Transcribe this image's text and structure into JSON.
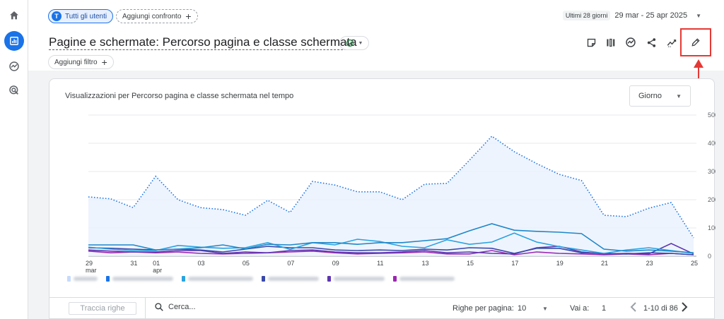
{
  "header": {
    "segment_chip": {
      "avatar_letter": "T",
      "label": "Tutti gli utenti"
    },
    "compare_chip": {
      "label": "Aggiungi confronto",
      "plus": "+"
    },
    "date_range": {
      "badge": "Ultimi 28 giorni",
      "range": "29 mar - 25 apr 2025",
      "caret": "▼"
    }
  },
  "report": {
    "title": "Pagine e schermate: Percorso pagina e classe schermata",
    "filter_chip": {
      "label": "Aggiungi filtro",
      "plus": "+"
    }
  },
  "colors": {
    "accent": "#1a73e8",
    "highlight": "#e53935",
    "status_ok": "#188038",
    "series_main": "#1a73e8",
    "series_fill": "#e8f0fe"
  },
  "toolbar_icons": [
    "note-icon",
    "compare-columns-icon",
    "insights-icon",
    "share-icon",
    "trend-icon",
    "pencil-icon"
  ],
  "chart": {
    "granularity": {
      "label": "Giorno",
      "caret": "▼"
    }
  },
  "chart_data": {
    "type": "line",
    "title": "Visualizzazioni per Percorso pagina e classe schermata nel tempo",
    "x": [
      "29 mar",
      "30",
      "31",
      "01 apr",
      "02",
      "03",
      "04",
      "05",
      "06",
      "07",
      "08",
      "09",
      "10",
      "11",
      "12",
      "13",
      "14",
      "15",
      "16",
      "17",
      "18",
      "19",
      "20",
      "21",
      "22",
      "23",
      "24",
      "25"
    ],
    "x_tick_labels": [
      {
        "index": 0,
        "line1": "29",
        "line2": "mar"
      },
      {
        "index": 2,
        "line1": "31",
        "line2": ""
      },
      {
        "index": 3,
        "line1": "01",
        "line2": "apr"
      },
      {
        "index": 5,
        "line1": "03",
        "line2": ""
      },
      {
        "index": 7,
        "line1": "05",
        "line2": ""
      },
      {
        "index": 9,
        "line1": "07",
        "line2": ""
      },
      {
        "index": 11,
        "line1": "09",
        "line2": ""
      },
      {
        "index": 13,
        "line1": "11",
        "line2": ""
      },
      {
        "index": 15,
        "line1": "13",
        "line2": ""
      },
      {
        "index": 17,
        "line1": "15",
        "line2": ""
      },
      {
        "index": 19,
        "line1": "17",
        "line2": ""
      },
      {
        "index": 21,
        "line1": "19",
        "line2": ""
      },
      {
        "index": 23,
        "line1": "21",
        "line2": ""
      },
      {
        "index": 25,
        "line1": "23",
        "line2": ""
      },
      {
        "index": 27,
        "line1": "25",
        "line2": ""
      }
    ],
    "y_ticks": [
      0,
      100,
      200,
      300,
      400,
      500
    ],
    "ylim": [
      0,
      500
    ],
    "series": [
      {
        "name": "Totale",
        "style": "dotted-area",
        "color": "#1a73e8",
        "values": [
          210,
          203,
          172,
          283,
          200,
          172,
          165,
          145,
          198,
          155,
          265,
          252,
          228,
          228,
          200,
          255,
          258,
          340,
          425,
          370,
          328,
          290,
          268,
          145,
          140,
          170,
          190,
          65
        ]
      },
      {
        "name": "Serie 1",
        "style": "line",
        "color": "#1e88c8",
        "values": [
          40,
          40,
          40,
          22,
          25,
          30,
          40,
          26,
          42,
          40,
          48,
          48,
          42,
          48,
          48,
          55,
          62,
          90,
          115,
          92,
          88,
          85,
          80,
          25,
          18,
          22,
          18,
          12
        ]
      },
      {
        "name": "Serie 2",
        "style": "line",
        "color": "#29a3e0",
        "values": [
          32,
          25,
          20,
          20,
          38,
          32,
          28,
          30,
          48,
          24,
          48,
          40,
          60,
          52,
          35,
          30,
          58,
          42,
          50,
          82,
          50,
          34,
          22,
          10,
          22,
          30,
          20,
          10
        ]
      },
      {
        "name": "Serie 3",
        "style": "line",
        "color": "#3949ab",
        "values": [
          30,
          28,
          25,
          22,
          25,
          22,
          15,
          25,
          35,
          30,
          30,
          22,
          20,
          22,
          20,
          25,
          22,
          30,
          28,
          10,
          28,
          28,
          12,
          10,
          8,
          12,
          10,
          5
        ]
      },
      {
        "name": "Serie 4",
        "style": "line",
        "color": "#5e35b1",
        "values": [
          22,
          18,
          15,
          15,
          20,
          20,
          10,
          15,
          12,
          20,
          22,
          15,
          12,
          12,
          15,
          20,
          12,
          15,
          10,
          8,
          30,
          35,
          15,
          8,
          10,
          8,
          45,
          8
        ]
      },
      {
        "name": "Serie 5",
        "style": "line",
        "color": "#9c27b0",
        "values": [
          18,
          12,
          15,
          12,
          15,
          10,
          8,
          10,
          12,
          15,
          18,
          12,
          8,
          10,
          12,
          15,
          8,
          8,
          20,
          5,
          15,
          10,
          8,
          5,
          8,
          5,
          10,
          5
        ]
      }
    ]
  },
  "legend": {
    "swatch_colors": [
      "#c6dafc",
      "#1a73e8",
      "#29a3e0",
      "#3949ab",
      "#5e35b1",
      "#9c27b0"
    ]
  },
  "table_controls": {
    "plot_rows_button": "Traccia righe",
    "search_placeholder": "Cerca...",
    "rows_per_page_label": "Righe per pagina:",
    "rows_per_page_value": "10",
    "goto_label": "Vai a:",
    "goto_value": "1",
    "pagination_range": "1-10 di 86"
  }
}
